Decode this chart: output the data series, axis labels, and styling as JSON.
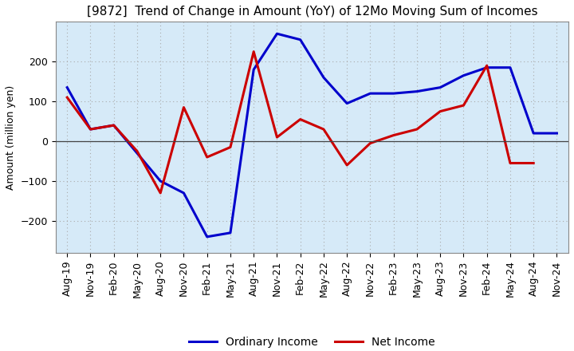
{
  "title": "[9872]  Trend of Change in Amount (YoY) of 12Mo Moving Sum of Incomes",
  "ylabel": "Amount (million yen)",
  "x_labels": [
    "Aug-19",
    "Nov-19",
    "Feb-20",
    "May-20",
    "Aug-20",
    "Nov-20",
    "Feb-21",
    "May-21",
    "Aug-21",
    "Nov-21",
    "Feb-22",
    "May-22",
    "Aug-22",
    "Nov-22",
    "Feb-23",
    "May-23",
    "Aug-23",
    "Nov-23",
    "Feb-24",
    "May-24",
    "Aug-24",
    "Nov-24"
  ],
  "ordinary_income": [
    135,
    30,
    40,
    -30,
    -100,
    -130,
    -240,
    -230,
    180,
    270,
    255,
    160,
    95,
    120,
    120,
    125,
    135,
    165,
    185,
    185,
    20,
    20
  ],
  "net_income": [
    110,
    30,
    40,
    -25,
    -130,
    85,
    -40,
    -15,
    225,
    10,
    55,
    30,
    -60,
    -5,
    15,
    30,
    75,
    90,
    190,
    -55,
    -55,
    null
  ],
  "ordinary_income_color": "#0000CC",
  "net_income_color": "#CC0000",
  "legend_labels": [
    "Ordinary Income",
    "Net Income"
  ],
  "ylim": [
    -280,
    300
  ],
  "yticks": [
    -200,
    -100,
    0,
    100,
    200
  ],
  "plot_bg_color": "#D6EAF8",
  "fig_bg_color": "#FFFFFF",
  "grid_color": "#AAAAAA",
  "title_fontsize": 11,
  "axis_fontsize": 9,
  "ylabel_fontsize": 9,
  "linewidth": 2.2,
  "legend_fontsize": 10
}
